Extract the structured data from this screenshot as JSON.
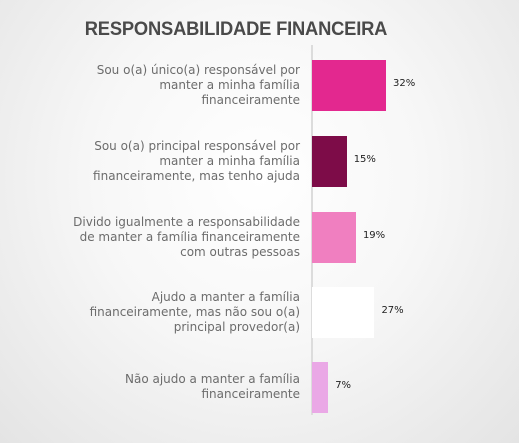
{
  "chart_data": {
    "type": "bar",
    "orientation": "horizontal",
    "title": "RESPONSABILIDADE FINANCEIRA",
    "categories": [
      "Sou o(a) único(a) responsável por manter a minha família financeiramente",
      "Sou o(a) principal responsável por manter a minha família financeiramente, mas tenho ajuda",
      "Divido igualmente a responsabilidade de manter a família financeiramente com outras pessoas",
      "Ajudo a manter a família financeiramente, mas não sou o(a) principal provedor(a)",
      "Não ajudo a manter a família financeiramente"
    ],
    "category_lines": [
      [
        "Sou o(a) único(a) responsável por",
        "manter a minha família",
        "financeiramente"
      ],
      [
        "Sou o(a) principal responsável por",
        "manter a minha família",
        "financeiramente, mas tenho ajuda"
      ],
      [
        "Divido igualmente a responsabilidade",
        "de manter a família financeiramente",
        "com outras pessoas"
      ],
      [
        "Ajudo a manter a família",
        "financeiramente, mas não sou o(a)",
        "principal provedor(a)"
      ],
      [
        "Não ajudo a manter a família",
        "financeiramente"
      ]
    ],
    "values": [
      32,
      15,
      19,
      27,
      7
    ],
    "value_labels": [
      "32%",
      "15%",
      "19%",
      "27%",
      "7%"
    ],
    "bar_colors": [
      "#e3288f",
      "#7d0c48",
      "#f07fc0",
      "#ffffff",
      "#eaa8e6"
    ],
    "grid": false,
    "legend": "none"
  }
}
